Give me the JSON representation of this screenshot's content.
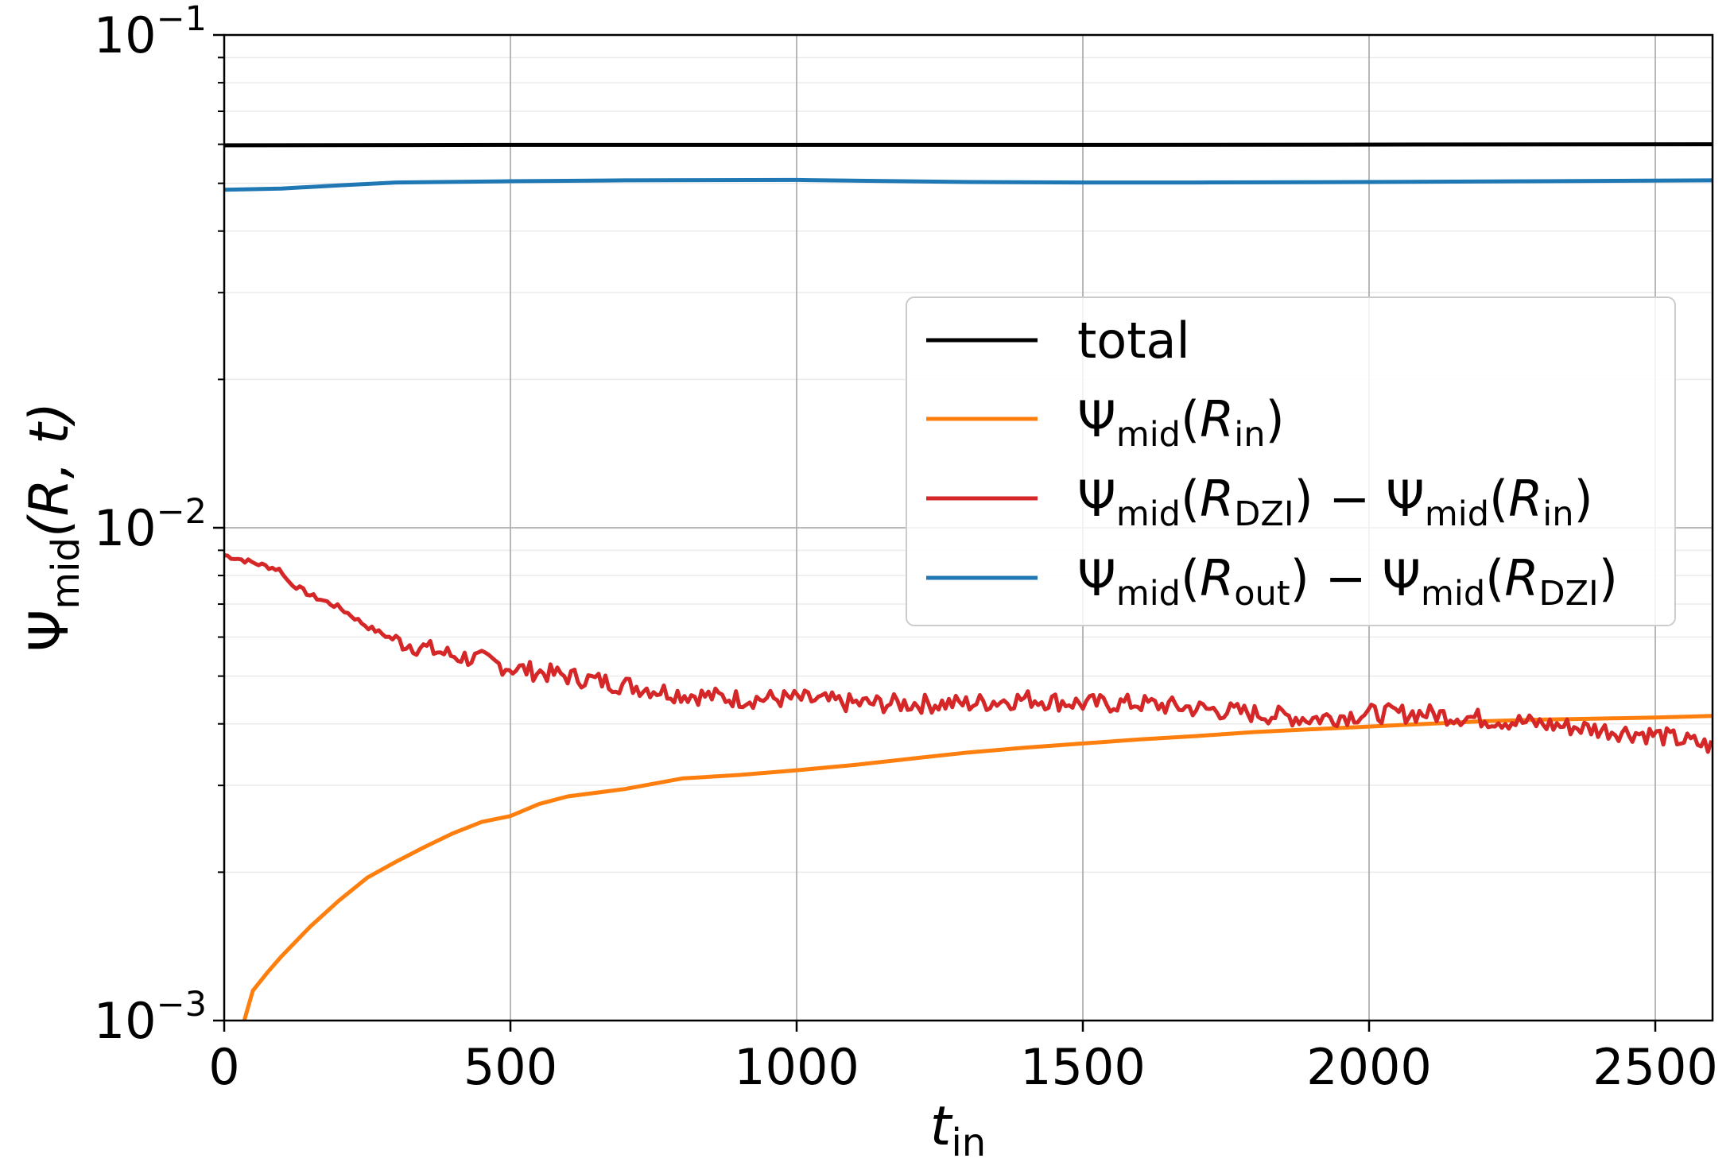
{
  "chart_data": {
    "type": "line",
    "yscale": "log",
    "xlim": [
      0,
      2600
    ],
    "ylim": [
      0.001,
      0.1
    ],
    "grid": true,
    "legend_position": "center-right",
    "x_ticks": [
      {
        "value": 0,
        "label": "0"
      },
      {
        "value": 500,
        "label": "500"
      },
      {
        "value": 1000,
        "label": "1000"
      },
      {
        "value": 1500,
        "label": "1500"
      },
      {
        "value": 2000,
        "label": "2000"
      },
      {
        "value": 2500,
        "label": "2500"
      }
    ],
    "y_ticks": [
      {
        "value": 0.001,
        "base": "10",
        "exp": "−3"
      },
      {
        "value": 0.01,
        "base": "10",
        "exp": "−2"
      },
      {
        "value": 0.1,
        "base": "10",
        "exp": "−1"
      }
    ],
    "xlabel": {
      "main": "t",
      "sub": "in"
    },
    "ylabel": {
      "main": "Ψ",
      "sub": "mid",
      "rest": "(R, t)"
    },
    "series": [
      {
        "name": "total",
        "color": "#000000",
        "legend_parts": [
          {
            "t": "total",
            "s": "n"
          }
        ],
        "x": [
          0,
          500,
          1000,
          1500,
          2000,
          2600
        ],
        "values": [
          0.0597,
          0.0598,
          0.0598,
          0.0598,
          0.0599,
          0.06
        ]
      },
      {
        "name": "Ψmid(Rin)",
        "color": "#ff7f0e",
        "legend_parts": [
          {
            "t": "Ψ",
            "s": "n"
          },
          {
            "t": "mid",
            "s": "sub"
          },
          {
            "t": "(",
            "s": "n"
          },
          {
            "t": "R",
            "s": "i"
          },
          {
            "t": "in",
            "s": "sub"
          },
          {
            "t": ")",
            "s": "n"
          }
        ],
        "x": [
          35,
          50,
          75,
          100,
          150,
          200,
          250,
          300,
          350,
          400,
          450,
          500,
          550,
          600,
          700,
          800,
          900,
          1000,
          1100,
          1200,
          1300,
          1400,
          1500,
          1600,
          1700,
          1800,
          1900,
          2000,
          2100,
          2200,
          2300,
          2400,
          2500,
          2600
        ],
        "values": [
          0.001,
          0.00115,
          0.00125,
          0.00135,
          0.00155,
          0.00175,
          0.00195,
          0.0021,
          0.00225,
          0.0024,
          0.00253,
          0.0026,
          0.00275,
          0.00285,
          0.00295,
          0.0031,
          0.00315,
          0.00322,
          0.0033,
          0.0034,
          0.0035,
          0.00358,
          0.00365,
          0.00372,
          0.00378,
          0.00385,
          0.0039,
          0.00395,
          0.004,
          0.00405,
          0.00408,
          0.0041,
          0.00412,
          0.00415
        ]
      },
      {
        "name": "Ψmid(RDZI) − Ψmid(Rin)",
        "color": "#d62728",
        "legend_parts": [
          {
            "t": "Ψ",
            "s": "n"
          },
          {
            "t": "mid",
            "s": "sub"
          },
          {
            "t": "(",
            "s": "n"
          },
          {
            "t": "R",
            "s": "i"
          },
          {
            "t": "DZI",
            "s": "sub"
          },
          {
            "t": ") − Ψ",
            "s": "n"
          },
          {
            "t": "mid",
            "s": "sub"
          },
          {
            "t": "(",
            "s": "n"
          },
          {
            "t": "R",
            "s": "i"
          },
          {
            "t": "in",
            "s": "sub"
          },
          {
            "t": ")",
            "s": "n"
          }
        ],
        "x": [
          0,
          50,
          100,
          110,
          150,
          200,
          250,
          300,
          350,
          400,
          450,
          500,
          550,
          600,
          700,
          800,
          900,
          1000,
          1100,
          1200,
          1300,
          1400,
          1500,
          1600,
          1700,
          1800,
          1900,
          2000,
          2100,
          2200,
          2300,
          2400,
          2500,
          2600
        ],
        "values": [
          0.0088,
          0.0085,
          0.0082,
          0.0078,
          0.0073,
          0.0069,
          0.0063,
          0.0059,
          0.0057,
          0.0055,
          0.0054,
          0.0052,
          0.0051,
          0.005,
          0.0048,
          0.0046,
          0.0045,
          0.0045,
          0.0044,
          0.0044,
          0.0044,
          0.0045,
          0.0044,
          0.0044,
          0.0043,
          0.0042,
          0.0041,
          0.0042,
          0.0042,
          0.0041,
          0.004,
          0.0039,
          0.0038,
          0.0036
        ]
      },
      {
        "name": "Ψmid(Rout) − Ψmid(RDZI)",
        "color": "#1f77b4",
        "legend_parts": [
          {
            "t": "Ψ",
            "s": "n"
          },
          {
            "t": "mid",
            "s": "sub"
          },
          {
            "t": "(",
            "s": "n"
          },
          {
            "t": "R",
            "s": "i"
          },
          {
            "t": "out",
            "s": "sub"
          },
          {
            "t": ") − Ψ",
            "s": "n"
          },
          {
            "t": "mid",
            "s": "sub"
          },
          {
            "t": "(",
            "s": "n"
          },
          {
            "t": "R",
            "s": "i"
          },
          {
            "t": "DZI",
            "s": "sub"
          },
          {
            "t": ")",
            "s": "n"
          }
        ],
        "x": [
          0,
          100,
          200,
          300,
          500,
          700,
          1000,
          1300,
          1500,
          1700,
          2000,
          2300,
          2600
        ],
        "values": [
          0.0485,
          0.0488,
          0.0495,
          0.0502,
          0.0505,
          0.0507,
          0.0508,
          0.0503,
          0.0502,
          0.0502,
          0.0503,
          0.0505,
          0.0507
        ]
      }
    ]
  }
}
